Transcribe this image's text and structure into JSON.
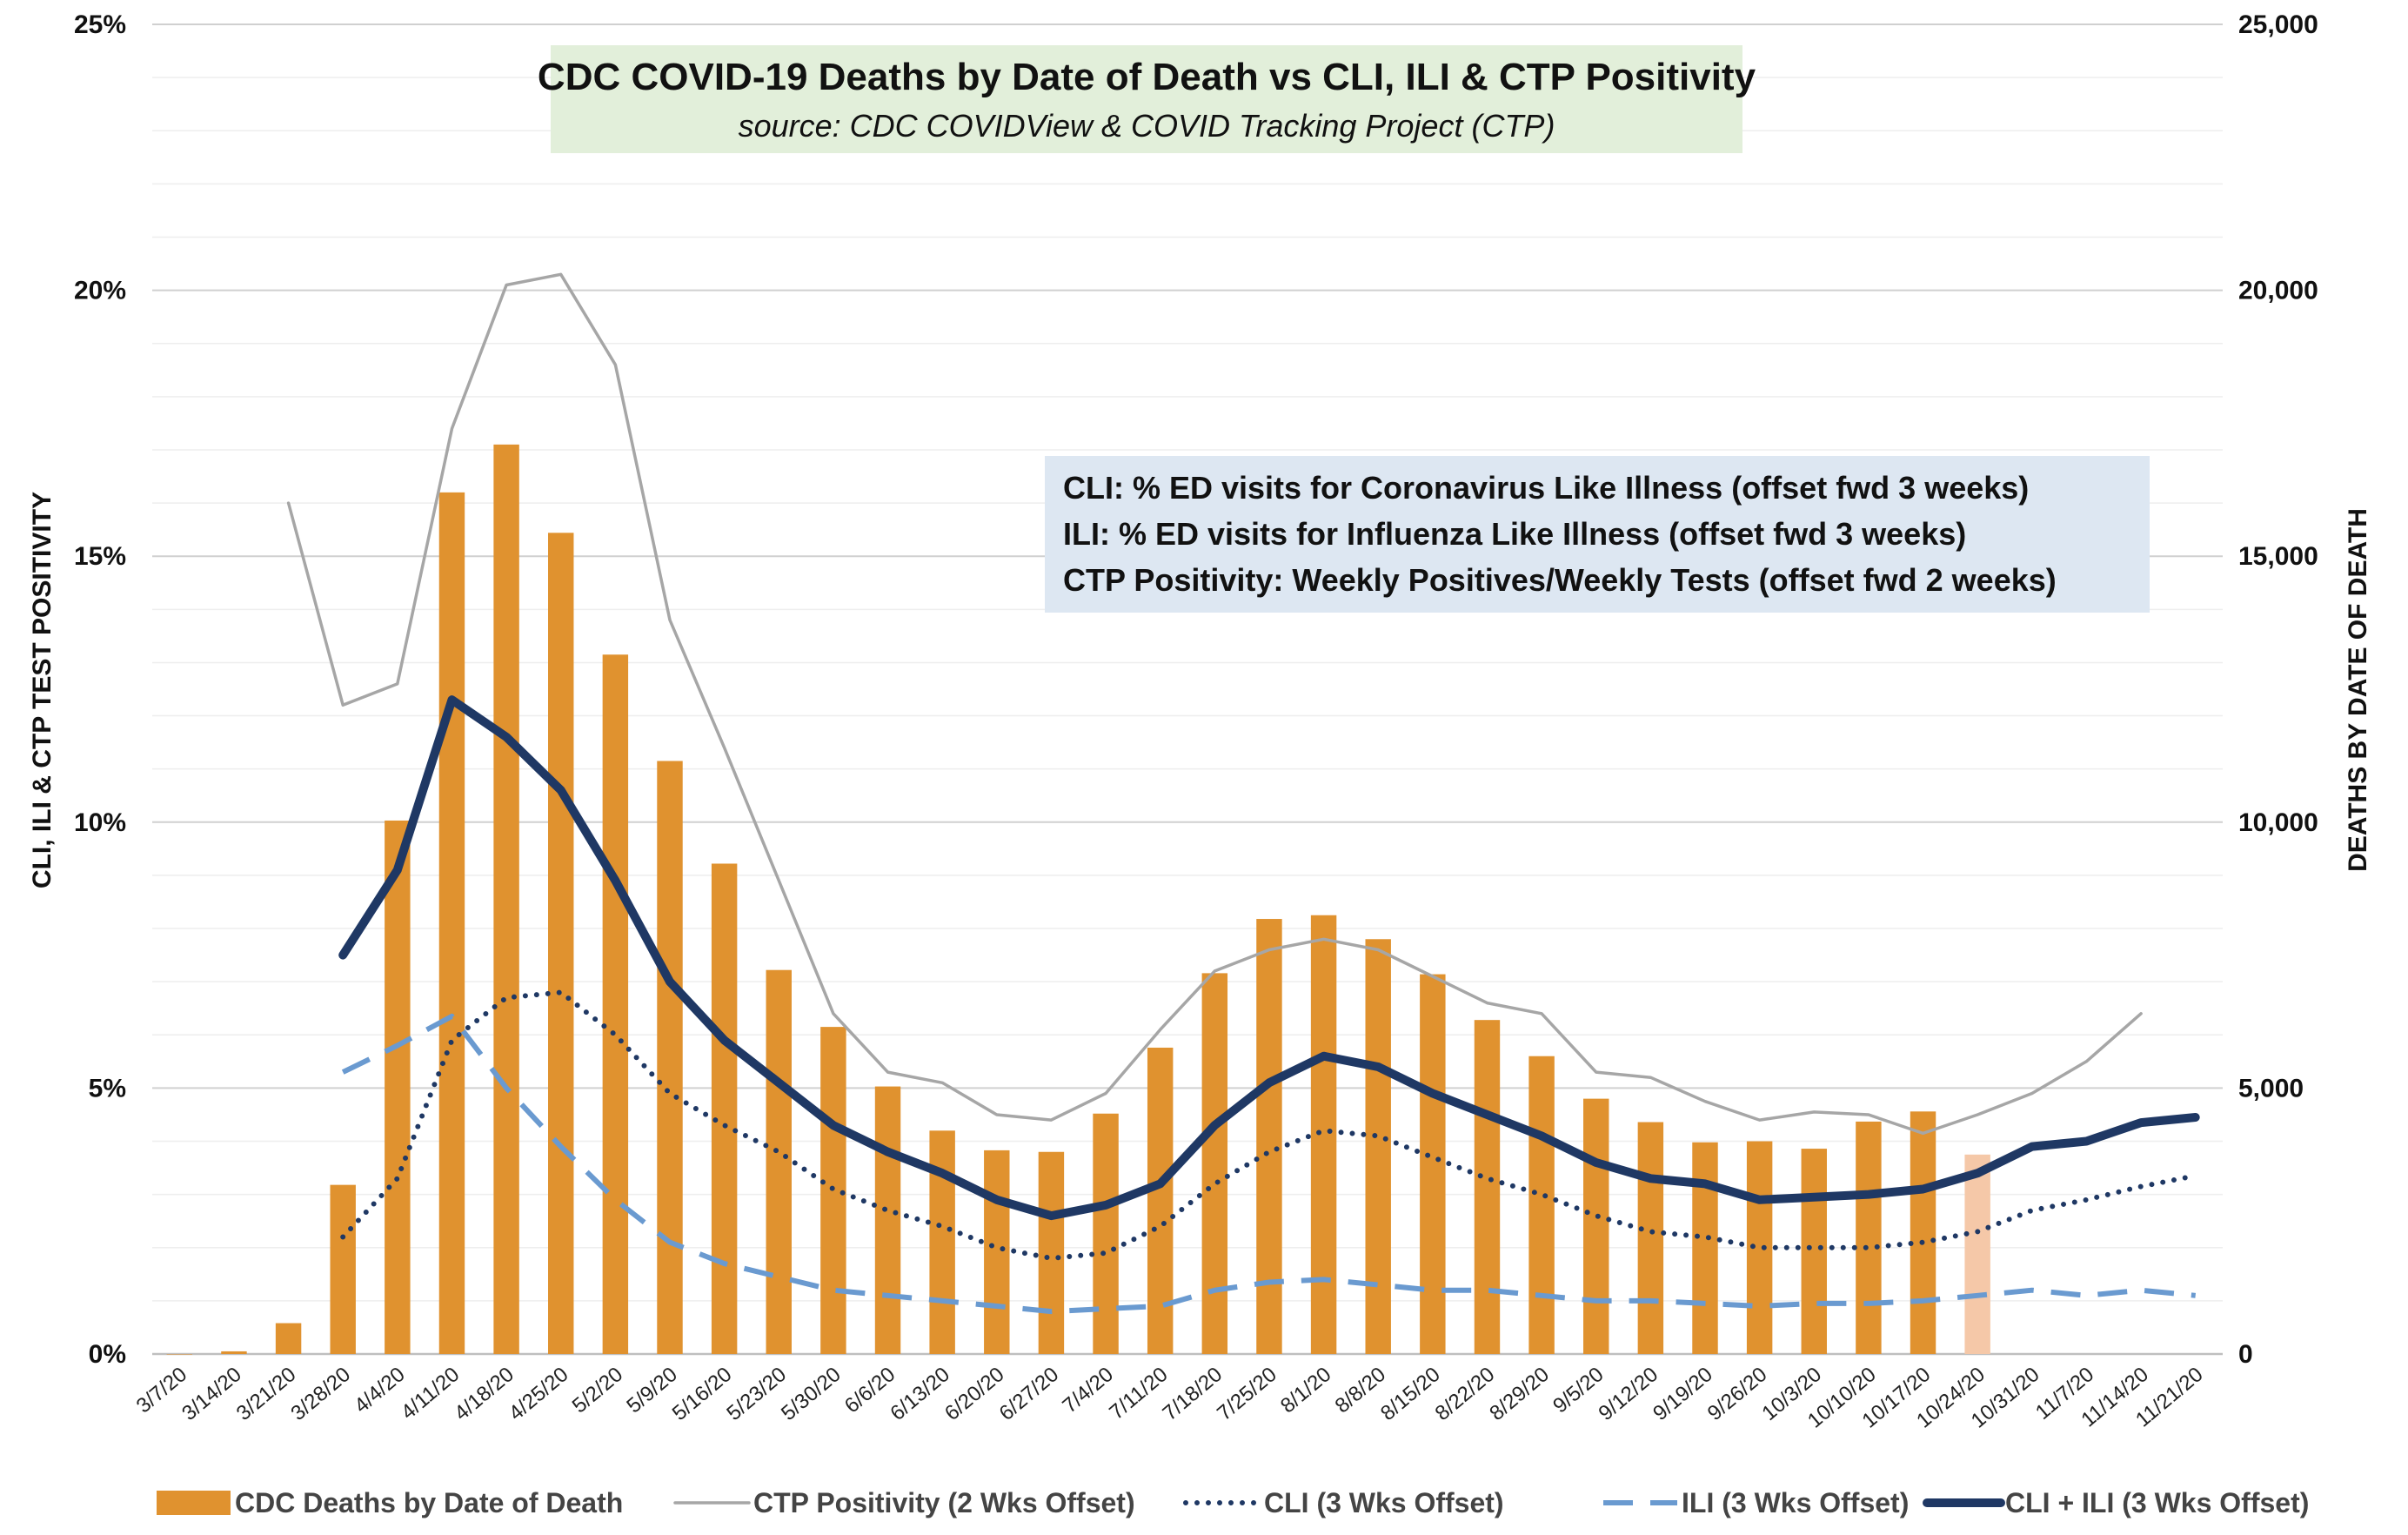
{
  "chart_data": {
    "type": "bar",
    "title": "CDC COVID-19 Deaths by Date of Death vs CLI, ILI & CTP Positivity",
    "subtitle": "source: CDC COVIDView & COVID Tracking Project (CTP)",
    "annotations": [
      "CLI: % ED visits for Coronavirus Like Illness (offset fwd 3 weeks)",
      "ILI:  % ED visits for Influenza Like Illness (offset fwd 3 weeks)",
      "CTP Positivity: Weekly Positives/Weekly Tests (offset fwd 2 weeks)"
    ],
    "ylabel_left": "CLI, ILI & CTP TEST POSITIVITY",
    "ylabel_right": "DEATHS BY DATE OF DEATH",
    "ylim_left": [
      0,
      25
    ],
    "ylim_right": [
      0,
      25000
    ],
    "yticks_left": [
      "0%",
      "5%",
      "10%",
      "15%",
      "20%",
      "25%"
    ],
    "yticks_right": [
      "0",
      "5,000",
      "10,000",
      "15,000",
      "20,000",
      "25,000"
    ],
    "grid": true,
    "legend_position": "bottom",
    "categories": [
      "3/7/20",
      "3/14/20",
      "3/21/20",
      "3/28/20",
      "4/4/20",
      "4/11/20",
      "4/18/20",
      "4/25/20",
      "5/2/20",
      "5/9/20",
      "5/16/20",
      "5/23/20",
      "5/30/20",
      "6/6/20",
      "6/13/20",
      "6/20/20",
      "6/27/20",
      "7/4/20",
      "7/11/20",
      "7/18/20",
      "7/25/20",
      "8/1/20",
      "8/8/20",
      "8/15/20",
      "8/22/20",
      "8/29/20",
      "9/5/20",
      "9/12/20",
      "9/19/20",
      "9/26/20",
      "10/3/20",
      "10/10/20",
      "10/17/20",
      "10/24/20",
      "10/31/20",
      "11/7/20",
      "11/14/20",
      "11/21/20"
    ],
    "series": [
      {
        "name": "CDC Deaths by Date of Death",
        "kind": "bar",
        "axis": "right",
        "color": "#E0922F",
        "incomplete_color": "#F5C8A8",
        "incomplete_from_index": 33,
        "values": [
          0,
          50,
          580,
          3180,
          10030,
          16200,
          17100,
          15440,
          13150,
          11150,
          9220,
          7220,
          6150,
          5030,
          4200,
          3830,
          3800,
          4520,
          5760,
          7160,
          8180,
          8250,
          7800,
          7140,
          6280,
          5600,
          4800,
          4360,
          3980,
          4000,
          3860,
          4370,
          4560,
          3750,
          null,
          null,
          null,
          null
        ]
      },
      {
        "name": "CTP Positivity (2 Wks Offset)",
        "kind": "line",
        "axis": "left",
        "color": "#A6A6A6",
        "values": [
          null,
          null,
          16.0,
          12.2,
          12.6,
          17.4,
          20.1,
          20.3,
          18.6,
          13.8,
          11.4,
          8.9,
          6.4,
          5.3,
          5.1,
          4.5,
          4.4,
          4.9,
          6.1,
          7.2,
          7.6,
          7.8,
          7.6,
          7.1,
          6.6,
          6.4,
          5.3,
          5.2,
          4.75,
          4.4,
          4.55,
          4.5,
          4.15,
          4.5,
          4.9,
          5.5,
          6.4,
          null
        ]
      },
      {
        "name": "CLI (3 Wks Offset)",
        "kind": "line",
        "axis": "left",
        "color": "#1F3864",
        "dash": "dotted",
        "values": [
          null,
          null,
          null,
          2.2,
          3.3,
          5.9,
          6.7,
          6.8,
          6.0,
          4.9,
          4.3,
          3.8,
          3.1,
          2.7,
          2.4,
          2.0,
          1.8,
          1.9,
          2.4,
          3.2,
          3.8,
          4.2,
          4.1,
          3.7,
          3.3,
          3.0,
          2.6,
          2.3,
          2.2,
          2.0,
          2.0,
          2.0,
          2.1,
          2.3,
          2.7,
          2.9,
          3.15,
          3.35
        ]
      },
      {
        "name": "ILI (3 Wks Offset)",
        "kind": "line",
        "axis": "left",
        "color": "#6A9AD0",
        "dash": "long-dash",
        "values": [
          null,
          null,
          null,
          5.3,
          5.8,
          6.35,
          5.0,
          3.9,
          2.9,
          2.1,
          1.7,
          1.45,
          1.2,
          1.1,
          1.0,
          0.9,
          0.8,
          0.85,
          0.9,
          1.2,
          1.35,
          1.4,
          1.3,
          1.2,
          1.2,
          1.1,
          1.0,
          1.0,
          0.95,
          0.9,
          0.95,
          0.95,
          1.0,
          1.1,
          1.2,
          1.1,
          1.2,
          1.1
        ]
      },
      {
        "name": "CLI + ILI (3 Wks Offset)",
        "kind": "line",
        "axis": "left",
        "color": "#1F3864",
        "dash": "solid",
        "values": [
          null,
          null,
          null,
          7.5,
          9.1,
          12.3,
          11.6,
          10.6,
          8.9,
          7.0,
          5.9,
          5.1,
          4.3,
          3.8,
          3.4,
          2.9,
          2.6,
          2.8,
          3.2,
          4.3,
          5.1,
          5.6,
          5.4,
          4.9,
          4.5,
          4.1,
          3.6,
          3.3,
          3.2,
          2.9,
          2.95,
          3.0,
          3.1,
          3.4,
          3.9,
          4.0,
          4.35,
          4.45
        ]
      }
    ]
  }
}
